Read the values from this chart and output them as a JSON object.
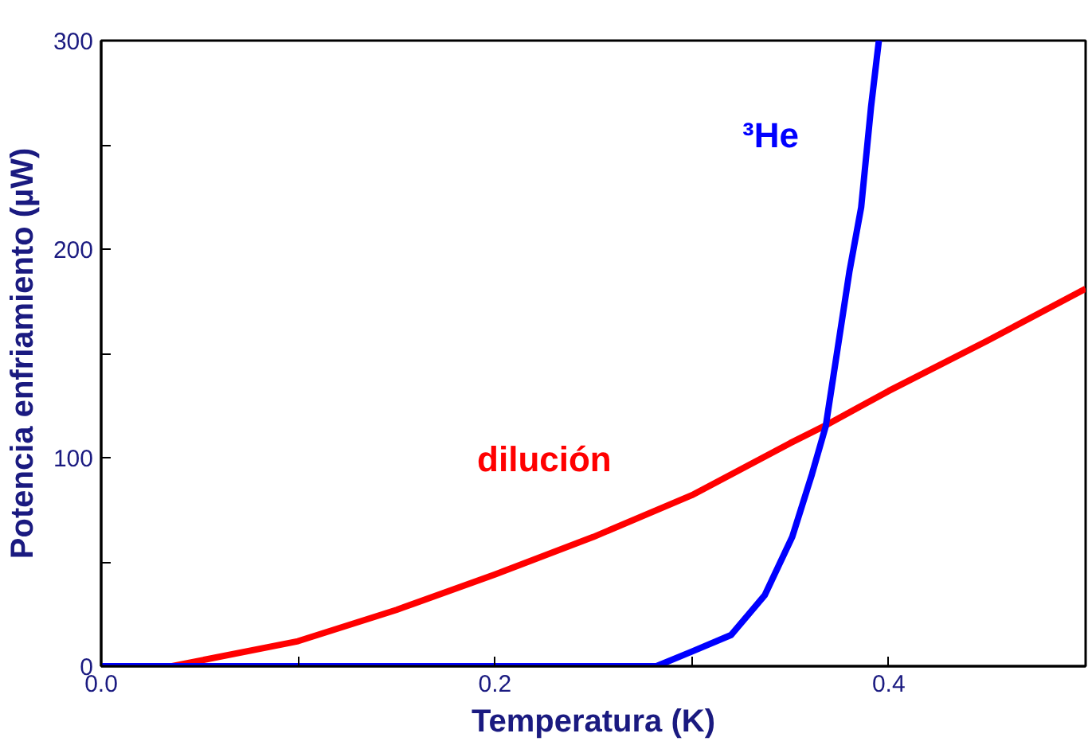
{
  "chart_data": {
    "type": "line",
    "xlabel": "Temperatura (K)",
    "ylabel": "Potencia enfriamiento (µW)",
    "xlim": [
      0,
      0.5
    ],
    "ylim": [
      0,
      300
    ],
    "xticks": [
      {
        "value": 0,
        "label": "0.0"
      },
      {
        "value": 0.1,
        "label": null
      },
      0.2,
      {
        "value": 0.3,
        "label": null
      },
      0.4
    ],
    "yticks": [
      0,
      {
        "value": 50,
        "label": null
      },
      100,
      {
        "value": 150,
        "label": null
      },
      200,
      {
        "value": 250,
        "label": null
      },
      300
    ],
    "grid": false,
    "marker": "none",
    "line_style": "solid",
    "series": [
      {
        "name": "dilución",
        "color": "#ff0000",
        "x": [
          0.036,
          0.1,
          0.15,
          0.2,
          0.25,
          0.3,
          0.35,
          0.367,
          0.4,
          0.45,
          0.5
        ],
        "values": [
          0,
          12,
          27,
          44,
          62,
          82,
          107,
          115,
          132,
          156,
          181
        ]
      },
      {
        "name": "³He",
        "color": "#0000ff",
        "x": [
          0.0,
          0.282,
          0.3,
          0.32,
          0.337,
          0.351,
          0.361,
          0.368,
          0.374,
          0.38,
          0.386,
          0.391,
          0.395
        ],
        "values": [
          0,
          0,
          7,
          15,
          34,
          62,
          92,
          115,
          152,
          189,
          220,
          268,
          300
        ]
      }
    ]
  }
}
